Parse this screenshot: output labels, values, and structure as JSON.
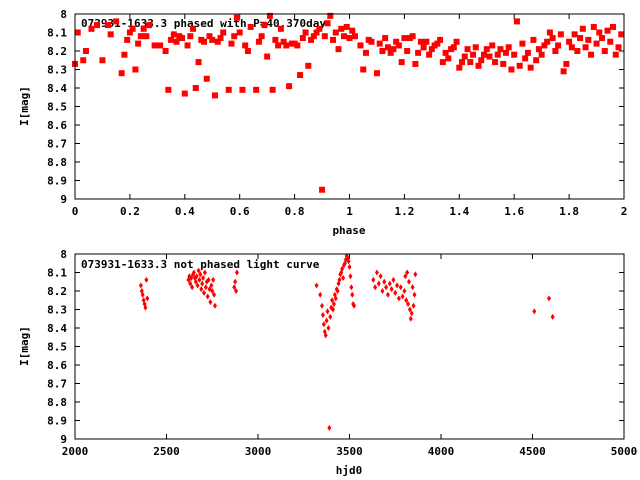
{
  "chart_data": [
    {
      "type": "scatter",
      "title": "073931-1633.3 phased with P=40.370day",
      "xlabel": "phase",
      "ylabel": "I[mag]",
      "xlim": [
        0,
        2
      ],
      "ylim": [
        9,
        8
      ],
      "y_inverted": true,
      "xticks": [
        "0",
        "0.2",
        "0.4",
        "0.6",
        "0.8",
        "1",
        "1.2",
        "1.4",
        "1.6",
        "1.8",
        "2"
      ],
      "yticks": [
        "8",
        "8.1",
        "8.2",
        "8.3",
        "8.4",
        "8.5",
        "8.6",
        "8.7",
        "8.8",
        "8.9",
        "9"
      ],
      "grid": false,
      "marker_color": "#ff0000",
      "marker": "square",
      "points": [
        [
          0.0,
          8.27
        ],
        [
          0.01,
          8.1
        ],
        [
          0.03,
          8.25
        ],
        [
          0.04,
          8.2
        ],
        [
          0.06,
          8.08
        ],
        [
          0.08,
          8.06
        ],
        [
          0.1,
          8.25
        ],
        [
          0.12,
          8.06
        ],
        [
          0.13,
          8.11
        ],
        [
          0.15,
          8.04
        ],
        [
          0.17,
          8.32
        ],
        [
          0.18,
          8.22
        ],
        [
          0.19,
          8.14
        ],
        [
          0.2,
          8.1
        ],
        [
          0.21,
          8.08
        ],
        [
          0.22,
          8.3
        ],
        [
          0.23,
          8.16
        ],
        [
          0.24,
          8.12
        ],
        [
          0.25,
          8.08
        ],
        [
          0.26,
          8.12
        ],
        [
          0.27,
          8.06
        ],
        [
          0.29,
          8.17
        ],
        [
          0.31,
          8.17
        ],
        [
          0.33,
          8.2
        ],
        [
          0.34,
          8.41
        ],
        [
          0.35,
          8.14
        ],
        [
          0.36,
          8.11
        ],
        [
          0.37,
          8.15
        ],
        [
          0.38,
          8.12
        ],
        [
          0.39,
          8.13
        ],
        [
          0.4,
          8.43
        ],
        [
          0.41,
          8.17
        ],
        [
          0.42,
          8.12
        ],
        [
          0.43,
          8.08
        ],
        [
          0.44,
          8.4
        ],
        [
          0.45,
          8.26
        ],
        [
          0.46,
          8.14
        ],
        [
          0.47,
          8.15
        ],
        [
          0.48,
          8.35
        ],
        [
          0.49,
          8.12
        ],
        [
          0.5,
          8.14
        ],
        [
          0.51,
          8.44
        ],
        [
          0.52,
          8.15
        ],
        [
          0.53,
          8.13
        ],
        [
          0.54,
          8.1
        ],
        [
          0.56,
          8.41
        ],
        [
          0.57,
          8.16
        ],
        [
          0.58,
          8.12
        ],
        [
          0.59,
          8.02
        ],
        [
          0.6,
          8.1
        ],
        [
          0.61,
          8.41
        ],
        [
          0.62,
          8.17
        ],
        [
          0.63,
          8.2
        ],
        [
          0.64,
          8.07
        ],
        [
          0.66,
          8.41
        ],
        [
          0.67,
          8.15
        ],
        [
          0.68,
          8.12
        ],
        [
          0.69,
          8.06
        ],
        [
          0.7,
          8.23
        ],
        [
          0.71,
          8.01
        ],
        [
          0.72,
          8.41
        ],
        [
          0.73,
          8.14
        ],
        [
          0.74,
          8.17
        ],
        [
          0.75,
          8.08
        ],
        [
          0.76,
          8.15
        ],
        [
          0.77,
          8.17
        ],
        [
          0.78,
          8.39
        ],
        [
          0.79,
          8.16
        ],
        [
          0.8,
          8.16
        ],
        [
          0.81,
          8.17
        ],
        [
          0.82,
          8.33
        ],
        [
          0.83,
          8.13
        ],
        [
          0.84,
          8.1
        ],
        [
          0.85,
          8.28
        ],
        [
          0.86,
          8.14
        ],
        [
          0.87,
          8.12
        ],
        [
          0.88,
          8.1
        ],
        [
          0.89,
          8.08
        ],
        [
          0.9,
          8.95
        ],
        [
          0.91,
          8.12
        ],
        [
          0.92,
          8.05
        ],
        [
          0.93,
          8.01
        ],
        [
          0.94,
          8.14
        ],
        [
          0.95,
          8.1
        ],
        [
          0.96,
          8.19
        ],
        [
          0.97,
          8.08
        ],
        [
          0.98,
          8.12
        ],
        [
          0.99,
          8.07
        ],
        [
          1.0,
          8.13
        ],
        [
          1.01,
          8.09
        ],
        [
          1.02,
          8.12
        ],
        [
          1.04,
          8.17
        ],
        [
          1.05,
          8.3
        ],
        [
          1.06,
          8.21
        ],
        [
          1.07,
          8.14
        ],
        [
          1.08,
          8.15
        ],
        [
          1.1,
          8.32
        ],
        [
          1.11,
          8.16
        ],
        [
          1.12,
          8.2
        ],
        [
          1.13,
          8.13
        ],
        [
          1.14,
          8.18
        ],
        [
          1.15,
          8.21
        ],
        [
          1.16,
          8.19
        ],
        [
          1.17,
          8.15
        ],
        [
          1.18,
          8.17
        ],
        [
          1.19,
          8.26
        ],
        [
          1.2,
          8.13
        ],
        [
          1.21,
          8.2
        ],
        [
          1.22,
          8.13
        ],
        [
          1.23,
          8.12
        ],
        [
          1.24,
          8.27
        ],
        [
          1.25,
          8.21
        ],
        [
          1.26,
          8.15
        ],
        [
          1.27,
          8.18
        ],
        [
          1.28,
          8.15
        ],
        [
          1.29,
          8.22
        ],
        [
          1.3,
          8.19
        ],
        [
          1.31,
          8.17
        ],
        [
          1.32,
          8.16
        ],
        [
          1.33,
          8.14
        ],
        [
          1.34,
          8.26
        ],
        [
          1.35,
          8.21
        ],
        [
          1.36,
          8.24
        ],
        [
          1.37,
          8.19
        ],
        [
          1.38,
          8.18
        ],
        [
          1.39,
          8.15
        ],
        [
          1.4,
          8.29
        ],
        [
          1.41,
          8.26
        ],
        [
          1.42,
          8.23
        ],
        [
          1.43,
          8.19
        ],
        [
          1.44,
          8.26
        ],
        [
          1.45,
          8.22
        ],
        [
          1.46,
          8.18
        ],
        [
          1.47,
          8.28
        ],
        [
          1.48,
          8.25
        ],
        [
          1.49,
          8.22
        ],
        [
          1.5,
          8.19
        ],
        [
          1.51,
          8.23
        ],
        [
          1.52,
          8.17
        ],
        [
          1.53,
          8.26
        ],
        [
          1.54,
          8.22
        ],
        [
          1.55,
          8.19
        ],
        [
          1.56,
          8.27
        ],
        [
          1.57,
          8.21
        ],
        [
          1.58,
          8.18
        ],
        [
          1.59,
          8.3
        ],
        [
          1.6,
          8.22
        ],
        [
          1.61,
          8.04
        ],
        [
          1.62,
          8.28
        ],
        [
          1.63,
          8.16
        ],
        [
          1.64,
          8.24
        ],
        [
          1.65,
          8.21
        ],
        [
          1.66,
          8.29
        ],
        [
          1.67,
          8.14
        ],
        [
          1.68,
          8.25
        ],
        [
          1.69,
          8.19
        ],
        [
          1.7,
          8.22
        ],
        [
          1.71,
          8.17
        ],
        [
          1.72,
          8.15
        ],
        [
          1.73,
          8.1
        ],
        [
          1.74,
          8.13
        ],
        [
          1.75,
          8.2
        ],
        [
          1.76,
          8.17
        ],
        [
          1.77,
          8.11
        ],
        [
          1.78,
          8.31
        ],
        [
          1.79,
          8.27
        ],
        [
          1.8,
          8.15
        ],
        [
          1.81,
          8.18
        ],
        [
          1.82,
          8.11
        ],
        [
          1.83,
          8.2
        ],
        [
          1.84,
          8.13
        ],
        [
          1.85,
          8.08
        ],
        [
          1.86,
          8.18
        ],
        [
          1.87,
          8.14
        ],
        [
          1.88,
          8.22
        ],
        [
          1.89,
          8.07
        ],
        [
          1.9,
          8.16
        ],
        [
          1.91,
          8.1
        ],
        [
          1.92,
          8.13
        ],
        [
          1.93,
          8.2
        ],
        [
          1.94,
          8.09
        ],
        [
          1.95,
          8.15
        ],
        [
          1.96,
          8.07
        ],
        [
          1.97,
          8.22
        ],
        [
          1.98,
          8.18
        ],
        [
          1.99,
          8.11
        ]
      ]
    },
    {
      "type": "scatter",
      "title": "073931-1633.3 not phased light curve",
      "xlabel": "hjd0",
      "ylabel": "I[mag]",
      "xlim": [
        2000,
        5000
      ],
      "ylim": [
        9,
        8
      ],
      "y_inverted": true,
      "xticks": [
        "2000",
        "2500",
        "3000",
        "3500",
        "4000",
        "4500",
        "5000"
      ],
      "yticks": [
        "8",
        "8.1",
        "8.2",
        "8.3",
        "8.4",
        "8.5",
        "8.6",
        "8.7",
        "8.8",
        "8.9",
        "9"
      ],
      "grid": false,
      "marker_color": "#ff0000",
      "marker": "diamond",
      "points": [
        [
          2360,
          8.17
        ],
        [
          2365,
          8.2
        ],
        [
          2370,
          8.22
        ],
        [
          2375,
          8.25
        ],
        [
          2380,
          8.27
        ],
        [
          2385,
          8.29
        ],
        [
          2390,
          8.14
        ],
        [
          2395,
          8.24
        ],
        [
          2620,
          8.14
        ],
        [
          2625,
          8.12
        ],
        [
          2630,
          8.16
        ],
        [
          2635,
          8.13
        ],
        [
          2640,
          8.18
        ],
        [
          2645,
          8.11
        ],
        [
          2650,
          8.1
        ],
        [
          2655,
          8.13
        ],
        [
          2660,
          8.15
        ],
        [
          2665,
          8.12
        ],
        [
          2670,
          8.17
        ],
        [
          2675,
          8.09
        ],
        [
          2680,
          8.14
        ],
        [
          2685,
          8.11
        ],
        [
          2690,
          8.19
        ],
        [
          2695,
          8.16
        ],
        [
          2700,
          8.13
        ],
        [
          2705,
          8.21
        ],
        [
          2710,
          8.1
        ],
        [
          2715,
          8.18
        ],
        [
          2720,
          8.15
        ],
        [
          2725,
          8.23
        ],
        [
          2730,
          8.14
        ],
        [
          2735,
          8.19
        ],
        [
          2740,
          8.26
        ],
        [
          2745,
          8.17
        ],
        [
          2750,
          8.2
        ],
        [
          2755,
          8.14
        ],
        [
          2760,
          8.22
        ],
        [
          2765,
          8.28
        ],
        [
          2870,
          8.18
        ],
        [
          2875,
          8.15
        ],
        [
          2880,
          8.2
        ],
        [
          2885,
          8.1
        ],
        [
          3320,
          8.17
        ],
        [
          3340,
          8.22
        ],
        [
          3350,
          8.28
        ],
        [
          3355,
          8.33
        ],
        [
          3360,
          8.38
        ],
        [
          3365,
          8.42
        ],
        [
          3370,
          8.44
        ],
        [
          3375,
          8.36
        ],
        [
          3380,
          8.31
        ],
        [
          3385,
          8.4
        ],
        [
          3390,
          8.94
        ],
        [
          3395,
          8.34
        ],
        [
          3400,
          8.29
        ],
        [
          3405,
          8.25
        ],
        [
          3410,
          8.3
        ],
        [
          3415,
          8.27
        ],
        [
          3420,
          8.22
        ],
        [
          3425,
          8.24
        ],
        [
          3430,
          8.19
        ],
        [
          3435,
          8.2
        ],
        [
          3440,
          8.16
        ],
        [
          3445,
          8.14
        ],
        [
          3450,
          8.11
        ],
        [
          3455,
          8.1
        ],
        [
          3460,
          8.08
        ],
        [
          3465,
          8.13
        ],
        [
          3470,
          8.06
        ],
        [
          3475,
          8.05
        ],
        [
          3480,
          8.03
        ],
        [
          3485,
          8.01
        ],
        [
          3490,
          8.02
        ],
        [
          3495,
          8.04
        ],
        [
          3500,
          8.07
        ],
        [
          3505,
          8.12
        ],
        [
          3510,
          8.18
        ],
        [
          3515,
          8.22
        ],
        [
          3520,
          8.27
        ],
        [
          3525,
          8.28
        ],
        [
          3630,
          8.14
        ],
        [
          3640,
          8.18
        ],
        [
          3650,
          8.1
        ],
        [
          3660,
          8.16
        ],
        [
          3670,
          8.12
        ],
        [
          3680,
          8.2
        ],
        [
          3690,
          8.15
        ],
        [
          3700,
          8.18
        ],
        [
          3710,
          8.22
        ],
        [
          3720,
          8.16
        ],
        [
          3730,
          8.19
        ],
        [
          3740,
          8.14
        ],
        [
          3750,
          8.21
        ],
        [
          3760,
          8.17
        ],
        [
          3770,
          8.24
        ],
        [
          3780,
          8.18
        ],
        [
          3790,
          8.23
        ],
        [
          3800,
          8.2
        ],
        [
          3805,
          8.12
        ],
        [
          3810,
          8.25
        ],
        [
          3815,
          8.1
        ],
        [
          3820,
          8.27
        ],
        [
          3825,
          8.15
        ],
        [
          3830,
          8.3
        ],
        [
          3835,
          8.35
        ],
        [
          3840,
          8.32
        ],
        [
          3845,
          8.18
        ],
        [
          3850,
          8.28
        ],
        [
          3855,
          8.22
        ],
        [
          3860,
          8.11
        ],
        [
          4510,
          8.31
        ],
        [
          4590,
          8.24
        ],
        [
          4610,
          8.34
        ]
      ]
    }
  ]
}
